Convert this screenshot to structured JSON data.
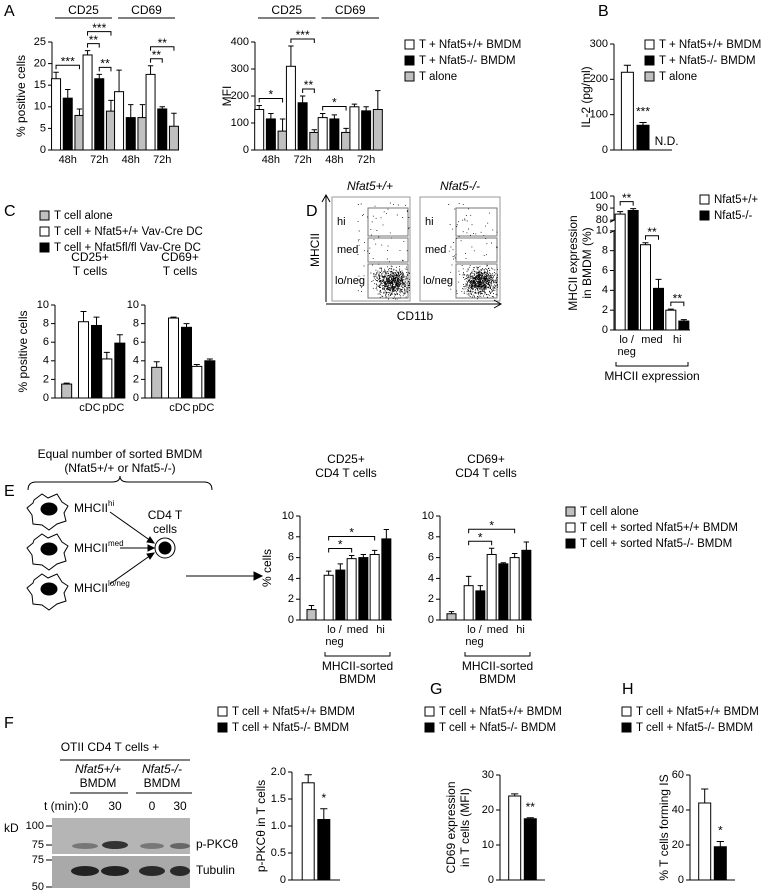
{
  "panel_labels": [
    "A",
    "B",
    "C",
    "D",
    "E",
    "F",
    "G",
    "H"
  ],
  "chart_data": [
    {
      "type": "bar",
      "ylabel": [
        "% positive cells"
      ],
      "categories": [
        "48h",
        "72h",
        "48h",
        "72h"
      ],
      "groups": [
        {
          "label": "CD25",
          "categories": [
            0,
            1
          ]
        },
        {
          "label": "CD69",
          "categories": [
            2,
            3
          ]
        }
      ],
      "series": [
        {
          "color": "#ffffff",
          "values": [
            16.5,
            22,
            13.5,
            17.5
          ],
          "errors": [
            1.5,
            1,
            5,
            2
          ]
        },
        {
          "color": "#000000",
          "values": [
            12,
            16.5,
            7.5,
            9.5
          ],
          "errors": [
            2,
            1,
            3,
            0.5
          ]
        },
        {
          "color": "#c0c0c0",
          "values": [
            8,
            9,
            7.5,
            5.5
          ],
          "errors": [
            1.5,
            2.5,
            3,
            3
          ]
        }
      ],
      "ylim": [
        0,
        25
      ],
      "yticks": [
        0,
        5,
        10,
        15,
        20,
        25
      ],
      "annotations": [
        {
          "text": "***",
          "bars": [
            [
              0,
              0
            ],
            [
              0,
              2
            ]
          ]
        },
        {
          "text": "**",
          "bars": [
            [
              1,
              0
            ],
            [
              1,
              1
            ]
          ]
        },
        {
          "text": "**",
          "bars": [
            [
              1,
              1
            ],
            [
              1,
              2
            ]
          ]
        },
        {
          "text": "***",
          "bars": [
            [
              1,
              0
            ],
            [
              1,
              2
            ]
          ]
        },
        {
          "text": "**",
          "bars": [
            [
              3,
              0
            ],
            [
              3,
              1
            ]
          ]
        },
        {
          "text": "**",
          "bars": [
            [
              3,
              0
            ],
            [
              3,
              2
            ]
          ]
        }
      ]
    },
    {
      "type": "bar",
      "ylabel": [
        "MFI"
      ],
      "categories": [
        "48h",
        "72h",
        "48h",
        "72h"
      ],
      "groups": [
        {
          "label": "CD25",
          "categories": [
            0,
            1
          ]
        },
        {
          "label": "CD69",
          "categories": [
            2,
            3
          ]
        }
      ],
      "series": [
        {
          "name": "T + Nfat5+/+ BMDM",
          "color": "#ffffff",
          "values": [
            150,
            310,
            120,
            160
          ],
          "errors": [
            15,
            75,
            15,
            10
          ]
        },
        {
          "name": "T + Nfat5-/- BMDM",
          "color": "#000000",
          "values": [
            115,
            175,
            115,
            145
          ],
          "errors": [
            20,
            25,
            15,
            15
          ]
        },
        {
          "name": "T alone",
          "color": "#c0c0c0",
          "values": [
            70,
            65,
            65,
            150
          ],
          "errors": [
            45,
            10,
            15,
            70
          ]
        }
      ],
      "ylim": [
        0,
        400
      ],
      "yticks": [
        0,
        100,
        200,
        300,
        400
      ],
      "annotations": [
        {
          "text": "*",
          "bars": [
            [
              0,
              0
            ],
            [
              0,
              2
            ]
          ]
        },
        {
          "text": "**",
          "bars": [
            [
              1,
              1
            ],
            [
              1,
              2
            ]
          ]
        },
        {
          "text": "***",
          "bars": [
            [
              1,
              0
            ],
            [
              1,
              2
            ]
          ]
        },
        {
          "text": "*",
          "bars": [
            [
              2,
              0
            ],
            [
              2,
              2
            ]
          ]
        }
      ]
    },
    {
      "type": "bar",
      "ylabel": [
        "IL-2 (pg/ml)"
      ],
      "categories": [
        null
      ],
      "series": [
        {
          "name": "T + Nfat5+/+ BMDM",
          "color": "#ffffff",
          "values": [
            220
          ],
          "errors": [
            20
          ]
        },
        {
          "name": "T + Nfat5-/- BMDM",
          "color": "#000000",
          "values": [
            70
          ],
          "errors": [
            8
          ]
        },
        {
          "name": "T alone",
          "color": "#c0c0c0",
          "values": [
            null
          ],
          "value_labels": [
            "N.D."
          ]
        }
      ],
      "ylim": [
        0,
        300
      ],
      "yticks": [
        0,
        100,
        200,
        300
      ],
      "annotations": [
        {
          "text": "***",
          "bars": [
            [
              0,
              1
            ]
          ]
        }
      ]
    },
    {
      "type": "bar",
      "title": [
        "CD25+",
        "T cells"
      ],
      "ylabel": [
        "% positive cells"
      ],
      "categories": [
        null,
        "cDC",
        "pDC"
      ],
      "series": [
        {
          "color": "#c0c0c0",
          "values": [
            1.5,
            null,
            null
          ],
          "errors": [
            0.1,
            null,
            null
          ]
        },
        {
          "color": "#ffffff",
          "values": [
            null,
            8.2,
            4.2
          ],
          "errors": [
            null,
            1.1,
            0.7
          ]
        },
        {
          "color": "#000000",
          "values": [
            null,
            7.8,
            5.9
          ],
          "errors": [
            null,
            0.9,
            0.9
          ]
        }
      ],
      "ylim": [
        0,
        10
      ],
      "yticks": [
        0,
        2,
        4,
        6,
        8,
        10
      ]
    },
    {
      "type": "bar",
      "title": [
        "CD69+",
        "T cells"
      ],
      "categories": [
        null,
        "cDC",
        "pDC"
      ],
      "series": [
        {
          "name": "T cell alone",
          "color": "#c0c0c0",
          "values": [
            3.3,
            null,
            null
          ],
          "errors": [
            0.6,
            null,
            null
          ]
        },
        {
          "name": "T cell + Nfat5+/+ Vav-Cre DC",
          "color": "#ffffff",
          "values": [
            null,
            8.6,
            3.4
          ],
          "errors": [
            null,
            0.1,
            0.2
          ]
        },
        {
          "name": "T cell + Nfat5fl/fl Vav-Cre DC",
          "color": "#000000",
          "values": [
            null,
            7.6,
            4.0
          ],
          "errors": [
            null,
            0.4,
            0.2
          ]
        }
      ],
      "ylim": [
        0,
        10
      ],
      "yticks": [
        0,
        2,
        4,
        6,
        8,
        10
      ]
    },
    {
      "type": "bar",
      "ylabel": [
        "MHCII expression",
        "in BMDM (%)"
      ],
      "categories": [
        "lo / neg",
        "med",
        "hi"
      ],
      "xlabel": [
        "MHCII expression"
      ],
      "series": [
        {
          "name": "Nfat5+/+",
          "color": "#ffffff",
          "values": [
            85,
            8.6,
            2.0
          ],
          "errors": [
            2,
            0.2,
            0.1
          ]
        },
        {
          "name": "Nfat5-/-",
          "color": "#000000",
          "values": [
            88,
            4.2,
            0.9
          ],
          "errors": [
            1.5,
            0.9,
            0.15
          ]
        }
      ],
      "ylim": [
        0,
        100
      ],
      "ybreak": [
        10,
        80
      ],
      "yticks": [
        0,
        2,
        4,
        6,
        8,
        10,
        80,
        90,
        100
      ],
      "annotations": [
        {
          "text": "**",
          "bars": [
            [
              0,
              0
            ],
            [
              0,
              1
            ]
          ]
        },
        {
          "text": "**",
          "bars": [
            [
              1,
              0
            ],
            [
              1,
              1
            ]
          ]
        },
        {
          "text": "**",
          "bars": [
            [
              2,
              0
            ],
            [
              2,
              1
            ]
          ]
        }
      ]
    },
    {
      "type": "bar",
      "title": [
        "CD25+",
        "CD4 T cells"
      ],
      "ylabel": [
        "% cells"
      ],
      "categories": [
        null,
        "lo / neg",
        "med",
        "hi"
      ],
      "xlabel": [
        "MHCII-sorted",
        "BMDM"
      ],
      "series": [
        {
          "color": "#c0c0c0",
          "values": [
            1.0,
            null,
            null,
            null
          ],
          "errors": [
            0.4,
            null,
            null,
            null
          ]
        },
        {
          "color": "#ffffff",
          "values": [
            null,
            4.3,
            5.9,
            6.3
          ],
          "errors": [
            null,
            0.4,
            0.3,
            0.4
          ]
        },
        {
          "color": "#000000",
          "values": [
            null,
            4.8,
            6.0,
            7.8
          ],
          "errors": [
            null,
            0.6,
            0.3,
            0.9
          ]
        }
      ],
      "ylim": [
        0,
        10
      ],
      "yticks": [
        0,
        2,
        4,
        6,
        8,
        10
      ],
      "annotations": [
        {
          "text": "*",
          "bars": [
            [
              1,
              1
            ],
            [
              2,
              1
            ]
          ]
        },
        {
          "text": "*",
          "bars": [
            [
              1,
              1
            ],
            [
              3,
              1
            ]
          ]
        }
      ]
    },
    {
      "type": "bar",
      "title": [
        "CD69+",
        "CD4 T cells"
      ],
      "categories": [
        null,
        "lo / neg",
        "med",
        "hi"
      ],
      "xlabel": [
        "MHCII-sorted",
        "BMDM"
      ],
      "series": [
        {
          "name": "T cell alone",
          "color": "#c0c0c0",
          "values": [
            0.6,
            null,
            null,
            null
          ],
          "errors": [
            0.2,
            null,
            null,
            null
          ]
        },
        {
          "name": "T cell + sorted Nfat5+/+ BMDM",
          "color": "#ffffff",
          "values": [
            null,
            3.3,
            6.3,
            6.0
          ],
          "errors": [
            null,
            0.9,
            0.6,
            0.4
          ]
        },
        {
          "name": "T cell + sorted Nfat5-/- BMDM",
          "color": "#000000",
          "values": [
            null,
            2.8,
            5.4,
            6.7
          ],
          "errors": [
            null,
            0.5,
            0.1,
            0.8
          ]
        }
      ],
      "ylim": [
        0,
        10
      ],
      "yticks": [
        0,
        2,
        4,
        6,
        8,
        10
      ],
      "annotations": [
        {
          "text": "*",
          "bars": [
            [
              1,
              1
            ],
            [
              2,
              1
            ]
          ]
        },
        {
          "text": "*",
          "bars": [
            [
              1,
              1
            ],
            [
              3,
              1
            ]
          ]
        }
      ]
    },
    {
      "type": "bar",
      "ylabel": [
        "p-PKCθ in T cells"
      ],
      "categories": [
        null
      ],
      "series": [
        {
          "name": "T cell + Nfat5+/+ BMDM",
          "color": "#ffffff",
          "values": [
            1.8
          ],
          "errors": [
            0.15
          ]
        },
        {
          "name": "T cell + Nfat5-/- BMDM",
          "color": "#000000",
          "values": [
            1.12
          ],
          "errors": [
            0.2
          ]
        }
      ],
      "ylim": [
        0,
        2
      ],
      "yticks": [
        0,
        0.5,
        {
          "value": 1,
          "label": "1.0"
        },
        1.5,
        {
          "value": 2,
          "label": "2.0"
        }
      ],
      "annotations": [
        {
          "text": "*",
          "bars": [
            [
              0,
              1
            ]
          ]
        }
      ]
    },
    {
      "type": "bar",
      "ylabel": [
        "CD69 expression",
        "in T cells (MFI)"
      ],
      "categories": [
        null
      ],
      "series": [
        {
          "name": "T cell + Nfat5+/+ BMDM",
          "color": "#ffffff",
          "values": [
            24
          ],
          "errors": [
            0.6
          ]
        },
        {
          "name": "T cell + Nfat5-/- BMDM",
          "color": "#000000",
          "values": [
            17.5
          ],
          "errors": [
            0.3
          ]
        }
      ],
      "ylim": [
        0,
        30
      ],
      "yticks": [
        0,
        10,
        20,
        30
      ],
      "annotations": [
        {
          "text": "**",
          "bars": [
            [
              0,
              1
            ]
          ]
        }
      ]
    },
    {
      "type": "bar",
      "ylabel": [
        "% T cells forming IS"
      ],
      "categories": [
        null
      ],
      "series": [
        {
          "name": "T cell + Nfat5+/+ BMDM",
          "color": "#ffffff",
          "values": [
            44
          ],
          "errors": [
            8
          ]
        },
        {
          "name": "T cell + Nfat5-/- BMDM",
          "color": "#000000",
          "values": [
            19
          ],
          "errors": [
            3
          ]
        }
      ],
      "ylim": [
        0,
        60
      ],
      "yticks": [
        0,
        20,
        40,
        60
      ],
      "annotations": [
        {
          "text": "*",
          "bars": [
            [
              0,
              1
            ]
          ]
        }
      ]
    }
  ],
  "flow": {
    "plots": [
      {
        "title": "Nfat5+/+"
      },
      {
        "title": "Nfat5-/-"
      }
    ],
    "gates": [
      "hi",
      "med",
      "lo/neg"
    ],
    "ylabel": "MHCII",
    "xlabel": "CD11b"
  },
  "diagram": {
    "heading": [
      "Equal number of sorted BMDM",
      "(Nfat5+/+ or Nfat5-/-)"
    ],
    "cells": [
      {
        "marker": "MHCII",
        "level": "hi"
      },
      {
        "marker": "MHCII",
        "level": "med"
      },
      {
        "marker": "MHCII",
        "level": "lo/neg"
      }
    ],
    "target": [
      "CD4 T",
      "cells"
    ]
  },
  "blot": {
    "heading": "OTII CD4 T cells +",
    "groups": [
      [
        "Nfat5+/+",
        "BMDM"
      ],
      [
        "Nfat5-/-",
        "BMDM"
      ]
    ],
    "time_label": "t (min):",
    "times": [
      0,
      30,
      0,
      30
    ],
    "unit": "kD",
    "markers": [
      100,
      75,
      75,
      50
    ],
    "bands": [
      "p-PKCθ",
      "Tubulin"
    ]
  }
}
